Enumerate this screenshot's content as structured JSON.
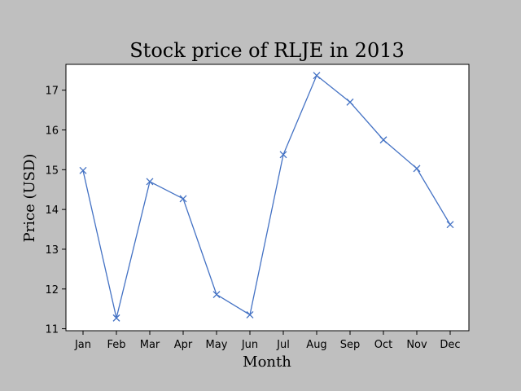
{
  "chart_data": {
    "type": "line",
    "title": "Stock price of RLJE in 2013",
    "xlabel": "Month",
    "ylabel": "Price (USD)",
    "categories": [
      "Jan",
      "Feb",
      "Mar",
      "Apr",
      "May",
      "Jun",
      "Jul",
      "Aug",
      "Sep",
      "Oct",
      "Nov",
      "Dec"
    ],
    "values": [
      14.98,
      11.27,
      14.7,
      14.27,
      11.86,
      11.35,
      15.38,
      17.37,
      16.7,
      15.75,
      15.03,
      13.62
    ],
    "ylim": [
      10.95,
      17.65
    ],
    "yticks": [
      11,
      12,
      13,
      14,
      15,
      16,
      17
    ],
    "marker": "x",
    "grid": false,
    "colors": {
      "line": "#4472c4",
      "background": "#bfbfbf",
      "plot": "#ffffff"
    }
  }
}
